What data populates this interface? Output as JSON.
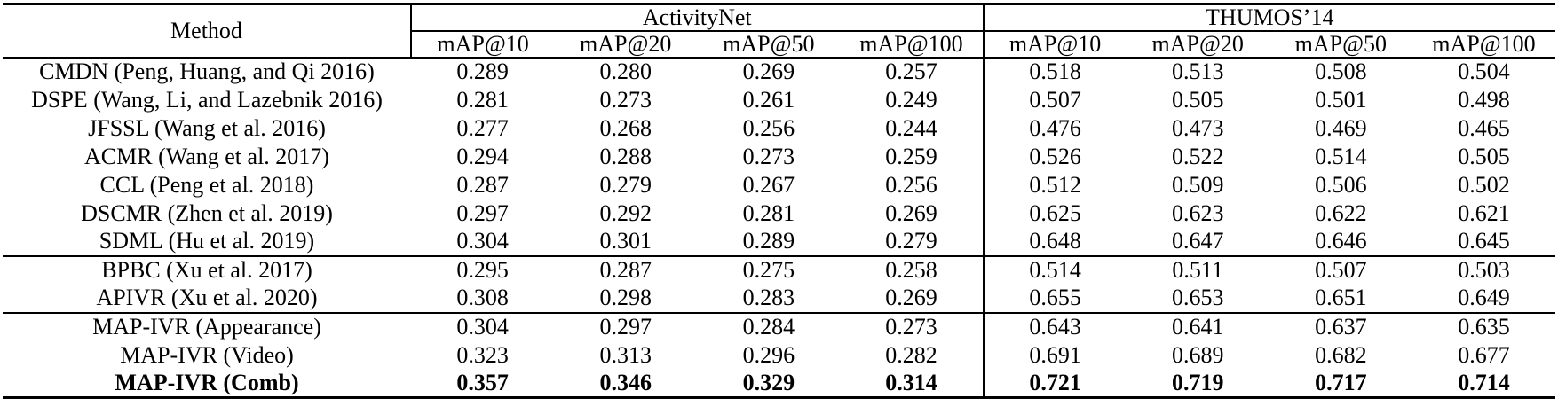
{
  "chart_data": {
    "type": "table",
    "method_header": "Method",
    "groups": [
      {
        "label": "ActivityNet",
        "columns": [
          "mAP@10",
          "mAP@20",
          "mAP@50",
          "mAP@100"
        ]
      },
      {
        "label": "THUMOS’14",
        "columns": [
          "mAP@10",
          "mAP@20",
          "mAP@50",
          "mAP@100"
        ]
      }
    ],
    "sections": [
      {
        "rows": [
          {
            "method": "CMDN (Peng, Huang, and Qi 2016)",
            "values": [
              "0.289",
              "0.280",
              "0.269",
              "0.257",
              "0.518",
              "0.513",
              "0.508",
              "0.504"
            ],
            "bold": false
          },
          {
            "method": "DSPE (Wang, Li, and Lazebnik 2016)",
            "values": [
              "0.281",
              "0.273",
              "0.261",
              "0.249",
              "0.507",
              "0.505",
              "0.501",
              "0.498"
            ],
            "bold": false
          },
          {
            "method": "JFSSL (Wang et al. 2016)",
            "values": [
              "0.277",
              "0.268",
              "0.256",
              "0.244",
              "0.476",
              "0.473",
              "0.469",
              "0.465"
            ],
            "bold": false
          },
          {
            "method": "ACMR (Wang et al. 2017)",
            "values": [
              "0.294",
              "0.288",
              "0.273",
              "0.259",
              "0.526",
              "0.522",
              "0.514",
              "0.505"
            ],
            "bold": false
          },
          {
            "method": "CCL (Peng et al. 2018)",
            "values": [
              "0.287",
              "0.279",
              "0.267",
              "0.256",
              "0.512",
              "0.509",
              "0.506",
              "0.502"
            ],
            "bold": false
          },
          {
            "method": "DSCMR (Zhen et al. 2019)",
            "values": [
              "0.297",
              "0.292",
              "0.281",
              "0.269",
              "0.625",
              "0.623",
              "0.622",
              "0.621"
            ],
            "bold": false
          },
          {
            "method": "SDML (Hu et al. 2019)",
            "values": [
              "0.304",
              "0.301",
              "0.289",
              "0.279",
              "0.648",
              "0.647",
              "0.646",
              "0.645"
            ],
            "bold": false
          }
        ]
      },
      {
        "rows": [
          {
            "method": "BPBC (Xu et al. 2017)",
            "values": [
              "0.295",
              "0.287",
              "0.275",
              "0.258",
              "0.514",
              "0.511",
              "0.507",
              "0.503"
            ],
            "bold": false
          },
          {
            "method": "APIVR (Xu et al. 2020)",
            "values": [
              "0.308",
              "0.298",
              "0.283",
              "0.269",
              "0.655",
              "0.653",
              "0.651",
              "0.649"
            ],
            "bold": false
          }
        ]
      },
      {
        "rows": [
          {
            "method": "MAP-IVR (Appearance)",
            "values": [
              "0.304",
              "0.297",
              "0.284",
              "0.273",
              "0.643",
              "0.641",
              "0.637",
              "0.635"
            ],
            "bold": false
          },
          {
            "method": "MAP-IVR (Video)",
            "values": [
              "0.323",
              "0.313",
              "0.296",
              "0.282",
              "0.691",
              "0.689",
              "0.682",
              "0.677"
            ],
            "bold": false
          },
          {
            "method": "MAP-IVR (Comb)",
            "values": [
              "0.357",
              "0.346",
              "0.329",
              "0.314",
              "0.721",
              "0.719",
              "0.717",
              "0.714"
            ],
            "bold": true
          }
        ]
      }
    ]
  }
}
